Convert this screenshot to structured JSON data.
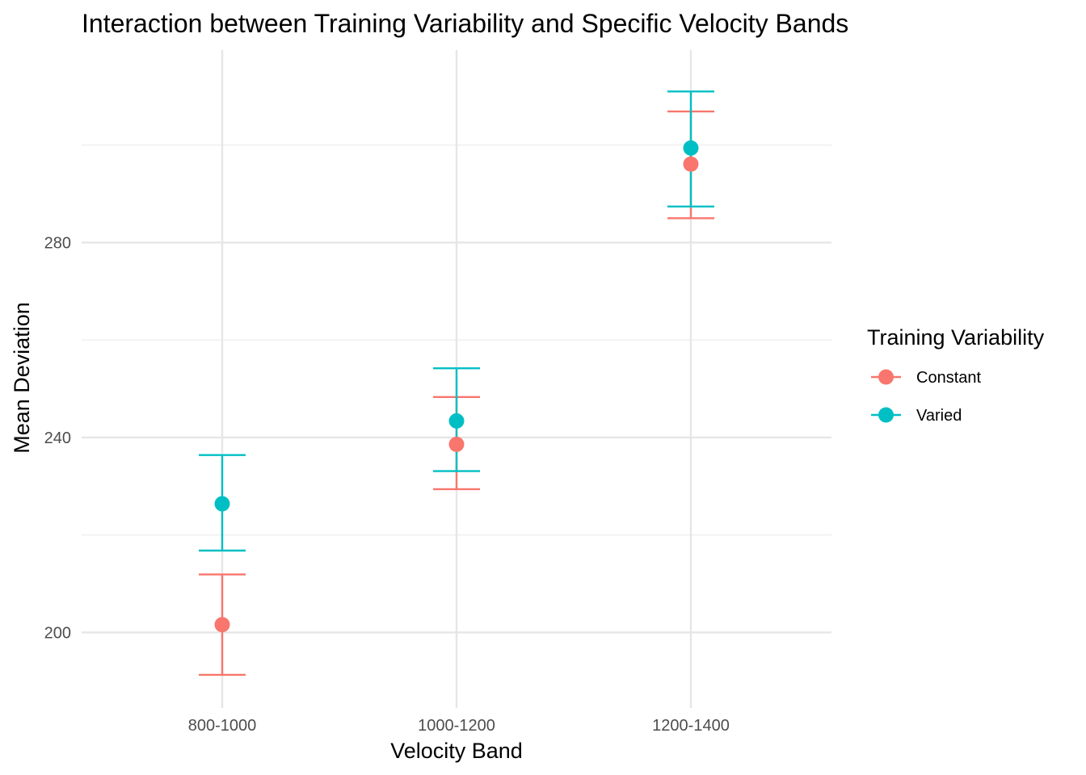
{
  "chart_data": {
    "type": "scatter",
    "title": "Interaction between Training Variability and Specific Velocity Bands",
    "xlabel": "Velocity Band",
    "ylabel": "Mean Deviation",
    "categories": [
      "800-1000",
      "1000-1200",
      "1200-1400"
    ],
    "y_ticks": [
      200,
      240,
      280
    ],
    "y_minor_ticks": [
      220,
      260,
      300
    ],
    "ylim": [
      184.5,
      319.5
    ],
    "grid": true,
    "legend": {
      "title": "Training Variability",
      "position": "right"
    },
    "series": [
      {
        "name": "Constant",
        "color": "#F8766D",
        "values": [
          201.6,
          238.6,
          296.1
        ],
        "error_low": [
          191.3,
          229.4,
          285.0
        ],
        "error_high": [
          211.9,
          248.3,
          306.9
        ]
      },
      {
        "name": "Varied",
        "color": "#00BFC4",
        "values": [
          226.4,
          243.4,
          299.4
        ],
        "error_low": [
          216.8,
          233.1,
          287.4
        ],
        "error_high": [
          236.4,
          254.2,
          311.0
        ]
      }
    ]
  }
}
